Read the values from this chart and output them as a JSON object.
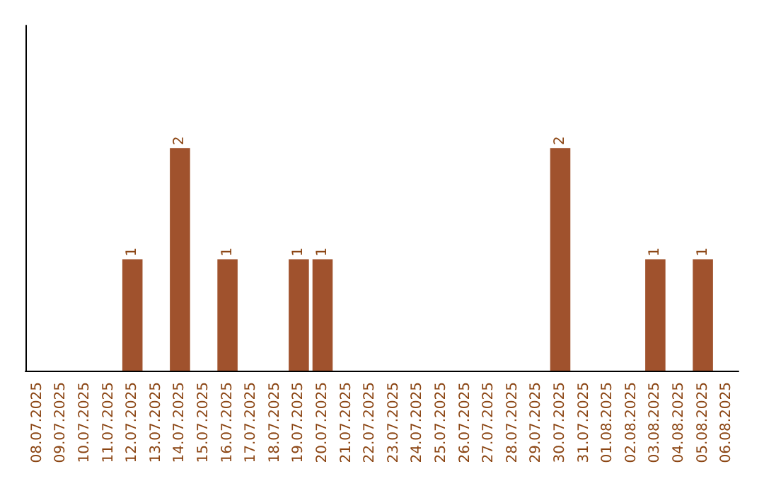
{
  "chart_data": {
    "type": "bar",
    "categories": [
      "08.07.2025",
      "09.07.2025",
      "10.07.2025",
      "11.07.2025",
      "12.07.2025",
      "13.07.2025",
      "14.07.2025",
      "15.07.2025",
      "16.07.2025",
      "17.07.2025",
      "18.07.2025",
      "19.07.2025",
      "20.07.2025",
      "21.07.2025",
      "22.07.2025",
      "23.07.2025",
      "24.07.2025",
      "25.07.2025",
      "26.07.2025",
      "27.07.2025",
      "28.07.2025",
      "29.07.2025",
      "30.07.2025",
      "31.07.2025",
      "01.08.2025",
      "02.08.2025",
      "03.08.2025",
      "04.08.2025",
      "05.08.2025",
      "06.08.2025"
    ],
    "values": [
      0,
      0,
      0,
      0,
      1,
      0,
      2,
      0,
      1,
      0,
      0,
      1,
      1,
      0,
      0,
      0,
      0,
      0,
      0,
      0,
      0,
      0,
      2,
      0,
      0,
      0,
      1,
      0,
      1,
      0
    ],
    "value_labels": [
      null,
      null,
      null,
      null,
      "1",
      null,
      "2",
      null,
      "1",
      null,
      null,
      "1",
      "1",
      null,
      null,
      null,
      null,
      null,
      null,
      null,
      null,
      null,
      "2",
      null,
      null,
      null,
      "1",
      null,
      "1",
      null
    ],
    "color": "#a0522d",
    "ylim": [
      0,
      3.1
    ],
    "tick_labels": "x",
    "grid": false
  }
}
